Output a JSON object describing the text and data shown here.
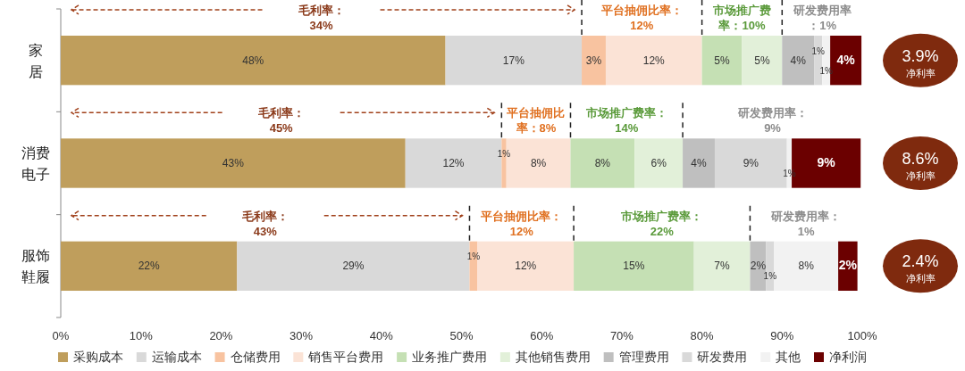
{
  "chart_data": {
    "type": "bar",
    "orientation": "horizontal",
    "stacked": true,
    "categories": [
      "家居",
      "消费电子",
      "服饰鞋履"
    ],
    "series": [
      {
        "name": "采购成本",
        "color": "#bf9e5c",
        "values": [
          48,
          43,
          22
        ],
        "value_labels": [
          "48%",
          "43%",
          "22%"
        ]
      },
      {
        "name": "运输成本",
        "color": "#d9d9d9",
        "values": [
          17,
          12,
          29
        ],
        "value_labels": [
          "17%",
          "12%",
          "29%"
        ]
      },
      {
        "name": "仓储费用",
        "color": "#f8c3a0",
        "values": [
          3,
          0.6,
          1
        ],
        "value_labels": [
          "3%",
          "1%",
          "1%"
        ]
      },
      {
        "name": "销售平台费用",
        "color": "#fbe3d6",
        "values": [
          12,
          8,
          12
        ],
        "value_labels": [
          "12%",
          "8%",
          "12%"
        ]
      },
      {
        "name": "业务推广费用",
        "color": "#c5e0b4",
        "values": [
          5,
          8,
          15
        ],
        "value_labels": [
          "5%",
          "8%",
          "15%"
        ]
      },
      {
        "name": "其他销售费用",
        "color": "#e2f0d9",
        "values": [
          5,
          6,
          7
        ],
        "value_labels": [
          "5%",
          "6%",
          "7%"
        ]
      },
      {
        "name": "管理费用",
        "color": "#bfbfbf",
        "values": [
          4,
          4,
          2
        ],
        "value_labels": [
          "4%",
          "4%",
          "2%"
        ]
      },
      {
        "name": "研发费用",
        "color": "#d9d9d9",
        "values": [
          1,
          9,
          1
        ],
        "value_labels": [
          "1%",
          "9%",
          "1%"
        ]
      },
      {
        "name": "其他",
        "color": "#f2f2f2",
        "values": [
          1,
          0.6,
          8
        ],
        "value_labels": [
          "1%",
          "1%",
          "8%"
        ]
      },
      {
        "name": "净利润",
        "color": "#6b0000",
        "values": [
          3.9,
          8.6,
          2.4
        ],
        "value_labels": [
          "4%",
          "9%",
          "2%"
        ]
      }
    ],
    "xlim": [
      0,
      100
    ],
    "xticks": [
      {
        "value": 0,
        "label": "0%"
      },
      {
        "value": 10,
        "label": "10%"
      },
      {
        "value": 20,
        "label": "20%"
      },
      {
        "value": 30,
        "label": "30%"
      },
      {
        "value": 40,
        "label": "40%"
      },
      {
        "value": 50,
        "label": "50%"
      },
      {
        "value": 60,
        "label": "60%"
      },
      {
        "value": 70,
        "label": "70%"
      },
      {
        "value": 80,
        "label": "80%"
      },
      {
        "value": 90,
        "label": "90%"
      },
      {
        "value": 100,
        "label": "100%"
      }
    ],
    "annotations": [
      "毛利率：34%",
      "平台抽佣比率：12%",
      "市场推广费率：10%",
      "研发费用率：1%",
      "毛利率：45%",
      "平台抽佣比率：8%",
      "市场推广费率：14%",
      "研发费用率：9%",
      "毛利率：43%",
      "平台抽佣比率：12%",
      "市场推广费率：22%",
      "研发费用率：1%",
      "3.9%\n净利率",
      "8.6%\n净利率",
      "2.4%\n净利率"
    ],
    "legend": "bottom",
    "grid": false
  }
}
